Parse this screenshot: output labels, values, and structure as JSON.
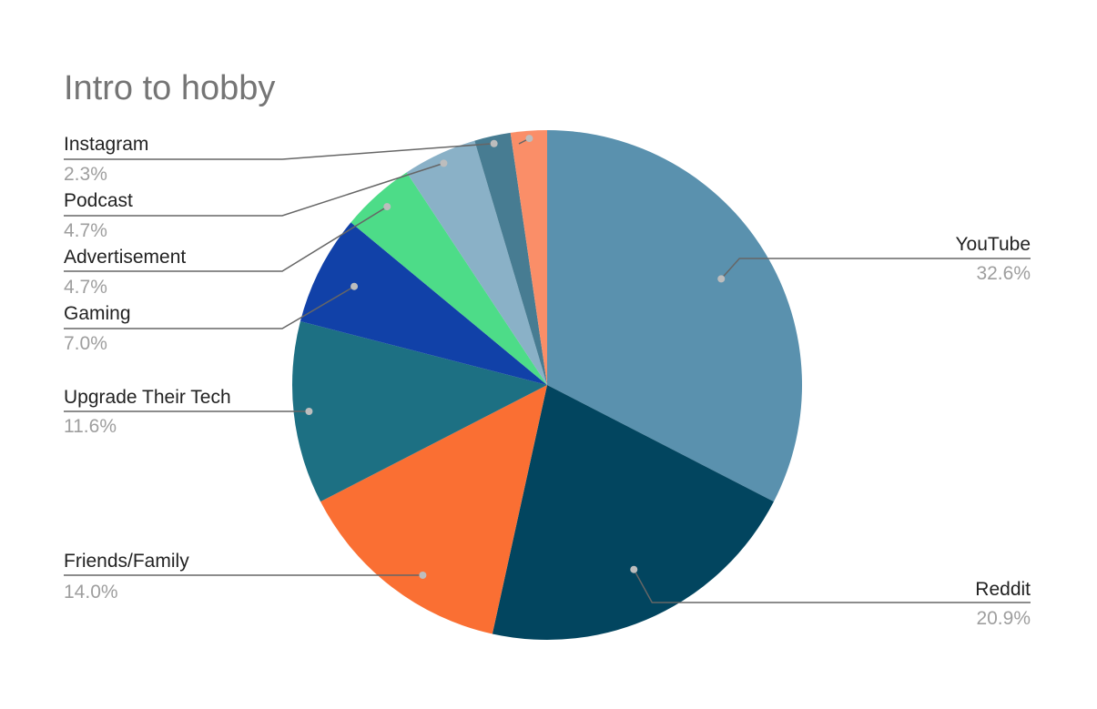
{
  "chart_data": {
    "type": "pie",
    "title": "Intro to hobby",
    "slices": [
      {
        "label": "YouTube",
        "value": 32.6,
        "display": "32.6%",
        "color": "#5a91ae"
      },
      {
        "label": "Reddit",
        "value": 20.9,
        "display": "20.9%",
        "color": "#02455f"
      },
      {
        "label": "Friends/Family",
        "value": 14.0,
        "display": "14.0%",
        "color": "#fa6f33"
      },
      {
        "label": "Upgrade Their Tech",
        "value": 11.6,
        "display": "11.6%",
        "color": "#1d7083"
      },
      {
        "label": "Gaming",
        "value": 7.0,
        "display": "7.0%",
        "color": "#1141a8"
      },
      {
        "label": "Advertisement",
        "value": 4.7,
        "display": "4.7%",
        "color": "#4ddc88"
      },
      {
        "label": "Podcast",
        "value": 4.7,
        "display": "4.7%",
        "color": "#8ab1c7"
      },
      {
        "label": "Instagram",
        "value": 2.3,
        "display": "2.3%",
        "color": "#477c92"
      },
      {
        "label": "",
        "value": 2.3,
        "display": "",
        "color": "#fa8e68"
      }
    ]
  }
}
